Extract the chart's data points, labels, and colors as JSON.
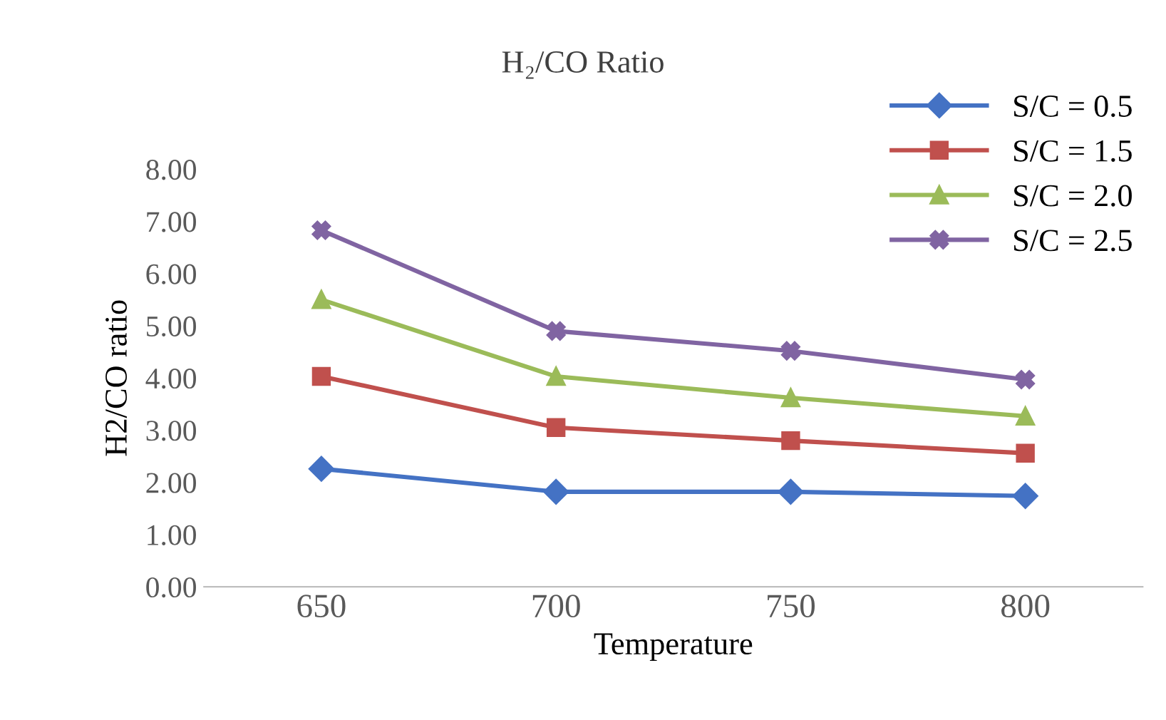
{
  "chart_data": {
    "type": "line",
    "title": "H₂/CO Ratio",
    "xlabel": "Temperature",
    "ylabel": "H2/CO ratio",
    "categories": [
      "650",
      "700",
      "750",
      "800"
    ],
    "series": [
      {
        "name": "S/C = 0.5",
        "color": "#4472c4",
        "values": [
          2.26,
          1.82,
          1.82,
          1.74
        ],
        "marker": "diamond"
      },
      {
        "name": "S/C = 1.5",
        "color": "#c0504d",
        "values": [
          4.03,
          3.05,
          2.8,
          2.56
        ],
        "marker": "square"
      },
      {
        "name": "S/C = 2.0",
        "color": "#9bbb59",
        "values": [
          5.5,
          4.03,
          3.62,
          3.27
        ],
        "marker": "triangle"
      },
      {
        "name": "S/C = 2.5",
        "color": "#8064a2",
        "values": [
          6.83,
          4.9,
          4.52,
          3.97
        ],
        "marker": "cross"
      }
    ],
    "ylim": [
      0,
      8
    ],
    "yticks": [
      {
        "value": 0,
        "label": "0.00"
      },
      {
        "value": 1,
        "label": "1.00"
      },
      {
        "value": 2,
        "label": "2.00"
      },
      {
        "value": 3,
        "label": "3.00"
      },
      {
        "value": 4,
        "label": "4.00"
      },
      {
        "value": 5,
        "label": "5.00"
      },
      {
        "value": 6,
        "label": "6.00"
      },
      {
        "value": 7,
        "label": "7.00"
      },
      {
        "value": 8,
        "label": "8.00"
      }
    ],
    "grid": false,
    "legend": "top right",
    "line_style": "solid"
  }
}
